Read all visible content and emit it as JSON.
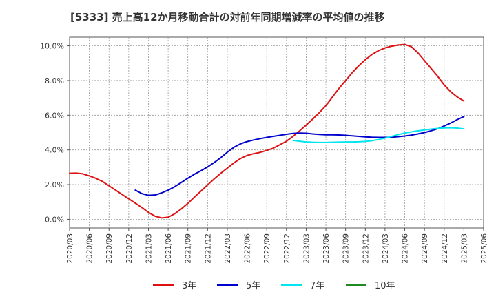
{
  "chart_data": {
    "type": "line",
    "title": "[5333]  売上高12か月移動合計の対前年同期増減率の平均値の推移",
    "xlabel": "",
    "ylabel": "",
    "ylim": [
      -0.5,
      10.5
    ],
    "y_ticks": [
      "0.0%",
      "2.0%",
      "4.0%",
      "6.0%",
      "8.0%",
      "10.0%"
    ],
    "y_tick_values": [
      0,
      2,
      4,
      6,
      8,
      10
    ],
    "x_ticks": [
      "2020/03",
      "2020/06",
      "2020/09",
      "2020/12",
      "2021/03",
      "2021/06",
      "2021/09",
      "2021/12",
      "2022/03",
      "2022/06",
      "2022/09",
      "2022/12",
      "2023/03",
      "2023/06",
      "2023/09",
      "2023/12",
      "2024/03",
      "2024/06",
      "2024/09",
      "2024/12",
      "2025/03",
      "2025/06"
    ],
    "grid": true,
    "legend_position": "bottom",
    "series": [
      {
        "name": "3年",
        "color": "#dd1111",
        "x": [
          "2020/03",
          "2020/04",
          "2020/05",
          "2020/06",
          "2020/07",
          "2020/08",
          "2020/09",
          "2020/10",
          "2020/11",
          "2020/12",
          "2021/01",
          "2021/02",
          "2021/03",
          "2021/04",
          "2021/05",
          "2021/06",
          "2021/07",
          "2021/08",
          "2021/09",
          "2021/10",
          "2021/11",
          "2021/12",
          "2022/01",
          "2022/02",
          "2022/03",
          "2022/04",
          "2022/05",
          "2022/06",
          "2022/07",
          "2022/08",
          "2022/09",
          "2022/10",
          "2022/11",
          "2022/12",
          "2023/01",
          "2023/02",
          "2023/03",
          "2023/04",
          "2023/05",
          "2023/06",
          "2023/07",
          "2023/08",
          "2023/09",
          "2023/10",
          "2023/11",
          "2023/12",
          "2024/01",
          "2024/02",
          "2024/03",
          "2024/04",
          "2024/05",
          "2024/06",
          "2024/07",
          "2024/08",
          "2024/09",
          "2024/10",
          "2024/11",
          "2024/12",
          "2025/01",
          "2025/02",
          "2025/03"
        ],
        "values": [
          2.65,
          2.66,
          2.62,
          2.5,
          2.36,
          2.18,
          1.93,
          1.68,
          1.43,
          1.18,
          0.93,
          0.68,
          0.4,
          0.18,
          0.08,
          0.12,
          0.32,
          0.6,
          0.92,
          1.28,
          1.63,
          1.98,
          2.33,
          2.65,
          2.95,
          3.25,
          3.5,
          3.68,
          3.78,
          3.86,
          3.97,
          4.1,
          4.3,
          4.5,
          4.78,
          5.1,
          5.43,
          5.78,
          6.15,
          6.55,
          7.05,
          7.55,
          8.0,
          8.45,
          8.85,
          9.2,
          9.5,
          9.72,
          9.88,
          9.98,
          10.05,
          10.08,
          9.95,
          9.6,
          9.15,
          8.7,
          8.25,
          7.75,
          7.35,
          7.05,
          6.82
        ]
      },
      {
        "name": "5年",
        "color": "#0000cc",
        "x": [
          "2021/01",
          "2021/02",
          "2021/03",
          "2021/04",
          "2021/05",
          "2021/06",
          "2021/07",
          "2021/08",
          "2021/09",
          "2021/10",
          "2021/11",
          "2021/12",
          "2022/01",
          "2022/02",
          "2022/03",
          "2022/04",
          "2022/05",
          "2022/06",
          "2022/07",
          "2022/08",
          "2022/09",
          "2022/10",
          "2022/11",
          "2022/12",
          "2023/01",
          "2023/02",
          "2023/03",
          "2023/04",
          "2023/05",
          "2023/06",
          "2023/07",
          "2023/08",
          "2023/09",
          "2023/10",
          "2023/11",
          "2023/12",
          "2024/01",
          "2024/02",
          "2024/03",
          "2024/04",
          "2024/05",
          "2024/06",
          "2024/07",
          "2024/08",
          "2024/09",
          "2024/10",
          "2024/11",
          "2024/12",
          "2025/01",
          "2025/02",
          "2025/03"
        ],
        "values": [
          1.68,
          1.48,
          1.38,
          1.4,
          1.52,
          1.68,
          1.88,
          2.12,
          2.37,
          2.6,
          2.8,
          3.02,
          3.27,
          3.55,
          3.87,
          4.15,
          4.35,
          4.48,
          4.57,
          4.65,
          4.72,
          4.78,
          4.84,
          4.9,
          4.95,
          4.97,
          4.96,
          4.92,
          4.89,
          4.87,
          4.87,
          4.86,
          4.84,
          4.81,
          4.78,
          4.75,
          4.73,
          4.72,
          4.72,
          4.73,
          4.76,
          4.8,
          4.85,
          4.92,
          5.0,
          5.1,
          5.22,
          5.38,
          5.55,
          5.75,
          5.92
        ]
      },
      {
        "name": "7年",
        "color": "#00e5ee",
        "x": [
          "2023/01",
          "2023/02",
          "2023/03",
          "2023/04",
          "2023/05",
          "2023/06",
          "2023/07",
          "2023/08",
          "2023/09",
          "2023/10",
          "2023/11",
          "2023/12",
          "2024/01",
          "2024/02",
          "2024/03",
          "2024/04",
          "2024/05",
          "2024/06",
          "2024/07",
          "2024/08",
          "2024/09",
          "2024/10",
          "2024/11",
          "2024/12",
          "2025/01",
          "2025/02",
          "2025/03"
        ],
        "values": [
          4.55,
          4.5,
          4.46,
          4.44,
          4.43,
          4.43,
          4.44,
          4.45,
          4.46,
          4.46,
          4.47,
          4.49,
          4.53,
          4.6,
          4.68,
          4.78,
          4.88,
          4.97,
          5.04,
          5.1,
          5.15,
          5.2,
          5.24,
          5.27,
          5.28,
          5.26,
          5.21
        ]
      },
      {
        "name": "10年",
        "color": "#228822",
        "x": [],
        "values": []
      }
    ]
  }
}
